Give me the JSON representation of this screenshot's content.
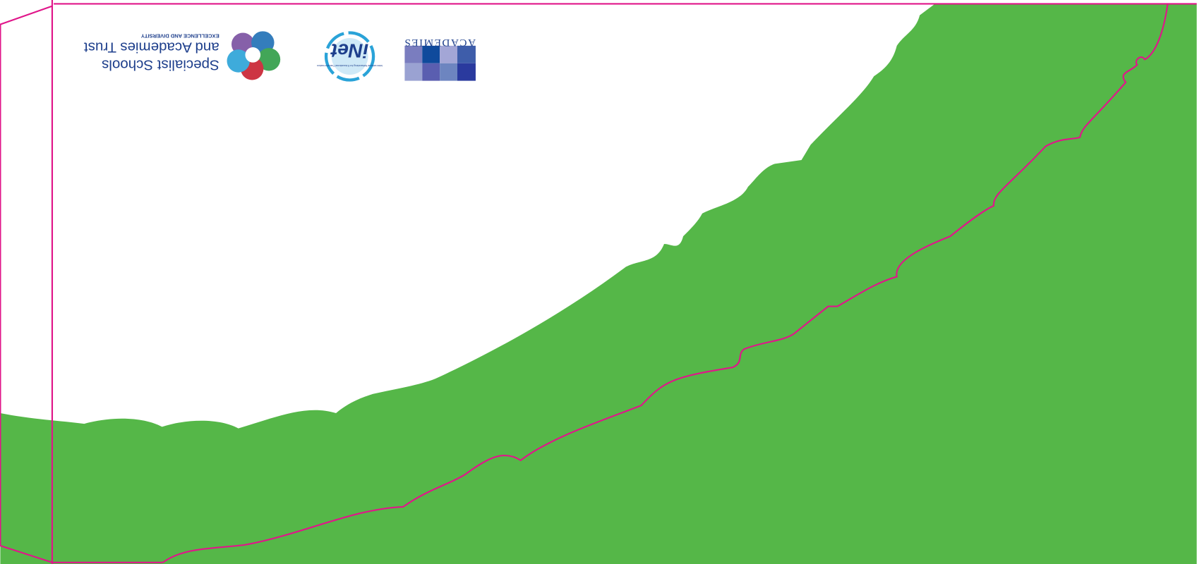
{
  "logos": {
    "ssat": {
      "name_line1": "Specialist Schools",
      "name_line2": "and Academies Trust",
      "tagline": "EXCELLENCE AND DIVERSITY"
    },
    "inet": {
      "name": "iNet",
      "tagline": "International Networking for Educational Transformation"
    },
    "academies": {
      "name": "ACADEMIES"
    }
  }
}
